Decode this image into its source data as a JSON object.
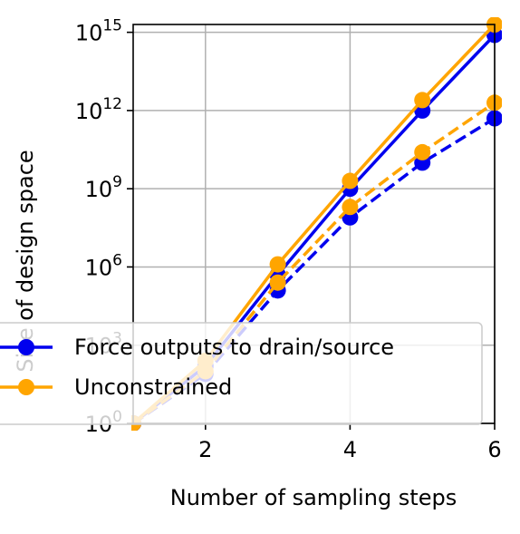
{
  "chart_data": {
    "type": "line",
    "xlabel": "Number of sampling steps",
    "ylabel": "Size of design space",
    "xlim": [
      1,
      6
    ],
    "ylim_log10": [
      0,
      15.3
    ],
    "yscale": "log",
    "grid": true,
    "legend_placement": "lower-left",
    "x_ticks": [
      {
        "value": 2,
        "label": "2"
      },
      {
        "value": 4,
        "label": "4"
      },
      {
        "value": 6,
        "label": "6"
      }
    ],
    "y_ticks": [
      {
        "exp": 0,
        "base": "10",
        "sup": "0"
      },
      {
        "exp": 3,
        "base": "10",
        "sup": "3"
      },
      {
        "exp": 6,
        "base": "10",
        "sup": "6"
      },
      {
        "exp": 9,
        "base": "10",
        "sup": "9"
      },
      {
        "exp": 12,
        "base": "10",
        "sup": "12"
      },
      {
        "exp": 15,
        "base": "10",
        "sup": "15"
      }
    ],
    "series": [
      {
        "name": "Force outputs to drain/source",
        "color": "#0000ee",
        "style": "solid",
        "marker": "circle",
        "in_legend": true,
        "x": [
          1,
          2,
          3,
          4,
          5,
          6
        ],
        "y_log10": [
          0,
          2.2,
          5.7,
          9.0,
          12.0,
          14.9
        ]
      },
      {
        "name": "Unconstrained",
        "color": "#ffa500",
        "style": "solid",
        "marker": "circle",
        "in_legend": true,
        "x": [
          1,
          2,
          3,
          4,
          5,
          6
        ],
        "y_log10": [
          0,
          2.4,
          6.1,
          9.3,
          12.4,
          15.3
        ]
      },
      {
        "name": "",
        "color": "#0000ee",
        "style": "dashed",
        "marker": "circle",
        "in_legend": false,
        "x": [
          1,
          2,
          3,
          4,
          5,
          6
        ],
        "y_log10": [
          0,
          1.9,
          5.1,
          7.9,
          10.0,
          11.7
        ]
      },
      {
        "name": "",
        "color": "#ffa500",
        "style": "dashed",
        "marker": "circle",
        "in_legend": false,
        "x": [
          1,
          2,
          3,
          4,
          5,
          6
        ],
        "y_log10": [
          0,
          2.0,
          5.4,
          8.3,
          10.4,
          12.3
        ]
      }
    ]
  }
}
